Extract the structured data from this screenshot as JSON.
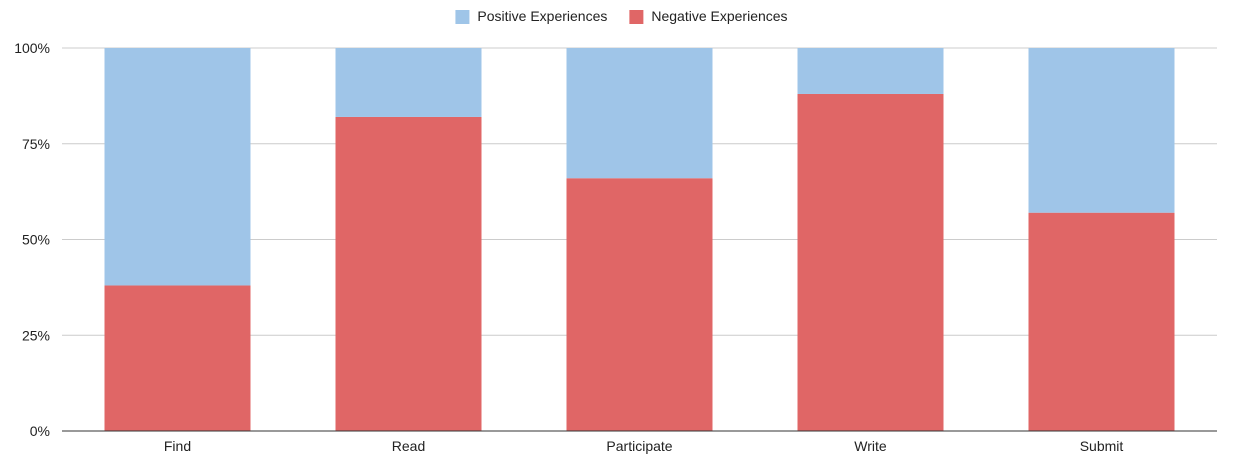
{
  "chart_data": {
    "type": "bar",
    "stacked": true,
    "normalized": true,
    "categories": [
      "Find",
      "Read",
      "Participate",
      "Write",
      "Submit"
    ],
    "series": [
      {
        "name": "Negative Experiences",
        "color": "#e06666",
        "values": [
          0.38,
          0.82,
          0.66,
          0.88,
          0.57
        ]
      },
      {
        "name": "Positive Experiences",
        "color": "#9fc5e8",
        "values": [
          0.62,
          0.18,
          0.34,
          0.12,
          0.43
        ]
      }
    ],
    "legend": {
      "placement": "top-center",
      "order": [
        "Positive Experiences",
        "Negative Experiences"
      ]
    },
    "y_ticks": [
      "0%",
      "25%",
      "50%",
      "75%",
      "100%"
    ],
    "ylim": [
      0,
      1
    ],
    "grid": true,
    "title": "",
    "xlabel": "",
    "ylabel": ""
  }
}
